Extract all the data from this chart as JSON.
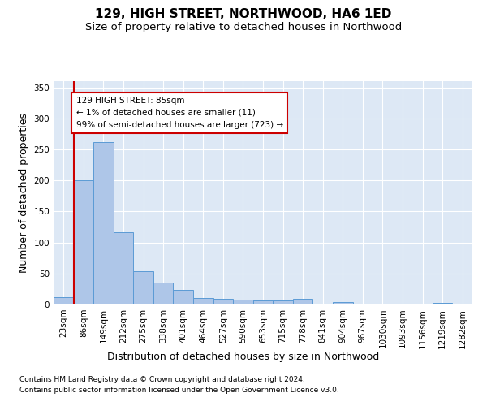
{
  "title": "129, HIGH STREET, NORTHWOOD, HA6 1ED",
  "subtitle": "Size of property relative to detached houses in Northwood",
  "xlabel": "Distribution of detached houses by size in Northwood",
  "ylabel": "Number of detached properties",
  "bin_labels": [
    "23sqm",
    "86sqm",
    "149sqm",
    "212sqm",
    "275sqm",
    "338sqm",
    "401sqm",
    "464sqm",
    "527sqm",
    "590sqm",
    "653sqm",
    "715sqm",
    "778sqm",
    "841sqm",
    "904sqm",
    "967sqm",
    "1030sqm",
    "1093sqm",
    "1156sqm",
    "1219sqm",
    "1282sqm"
  ],
  "bar_heights": [
    12,
    200,
    262,
    117,
    54,
    36,
    24,
    10,
    9,
    8,
    6,
    6,
    9,
    0,
    4,
    0,
    0,
    0,
    0,
    3,
    0
  ],
  "bar_color": "#aec6e8",
  "bar_edge_color": "#5b9bd5",
  "annotation_text": "129 HIGH STREET: 85sqm\n← 1% of detached houses are smaller (11)\n99% of semi-detached houses are larger (723) →",
  "annotation_box_color": "#ffffff",
  "annotation_box_edge": "#cc0000",
  "property_line_color": "#cc0000",
  "ylim": [
    0,
    360
  ],
  "yticks": [
    0,
    50,
    100,
    150,
    200,
    250,
    300,
    350
  ],
  "footer_line1": "Contains HM Land Registry data © Crown copyright and database right 2024.",
  "footer_line2": "Contains public sector information licensed under the Open Government Licence v3.0.",
  "bg_color": "#dde8f5",
  "grid_color": "#ffffff",
  "title_fontsize": 11,
  "subtitle_fontsize": 9.5,
  "axis_label_fontsize": 9,
  "tick_fontsize": 7.5,
  "footer_fontsize": 6.5
}
